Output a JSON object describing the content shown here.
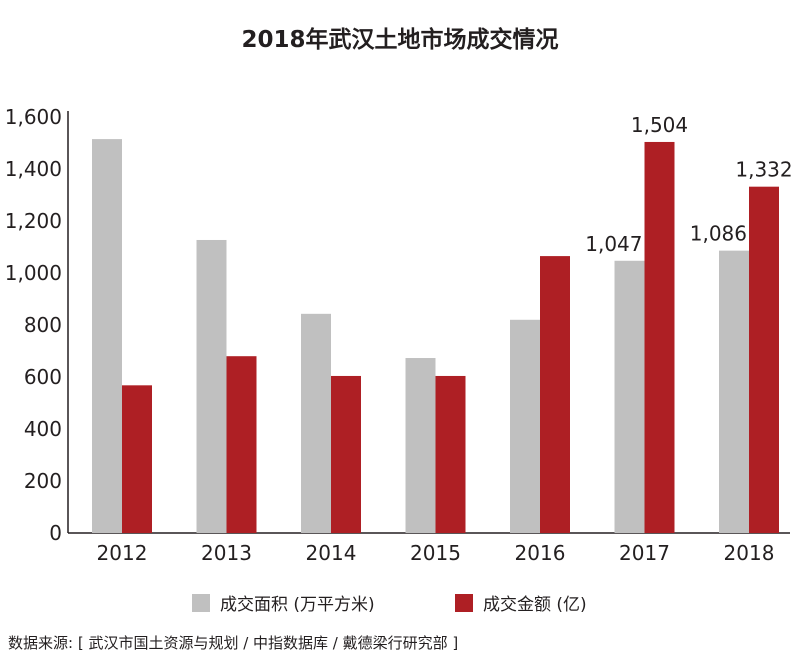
{
  "title": "2018年武汉土地市场成交情况",
  "legend": {
    "area_label": "成交面积 (万平方米)",
    "amount_label": "成交金额 (亿)"
  },
  "source": "数据来源: [ 武汉市国土资源与规划 / 中指数据库 / 戴德梁行研究部 ]",
  "colors": {
    "area": "#c0c0c0",
    "amount": "#ae1f24",
    "axis": "#231f20"
  },
  "chart_data": {
    "type": "bar",
    "title": "2018年武汉土地市场成交情况",
    "categories": [
      "2012",
      "2013",
      "2014",
      "2015",
      "2016",
      "2017",
      "2018"
    ],
    "series": [
      {
        "name": "成交面积 (万平方米)",
        "values": [
          1515,
          1127,
          843,
          673,
          820,
          1047,
          1086
        ]
      },
      {
        "name": "成交金额 (亿)",
        "values": [
          568,
          680,
          604,
          604,
          1065,
          1504,
          1332
        ]
      }
    ],
    "yticks": [
      "0",
      "200",
      "400",
      "600",
      "800",
      "1,000",
      "1,200",
      "1,400",
      "1,600"
    ],
    "ylim": [
      0,
      1600
    ],
    "data_labels": [
      {
        "series": 0,
        "index": 5,
        "text": "1,047"
      },
      {
        "series": 1,
        "index": 5,
        "text": "1,504"
      },
      {
        "series": 0,
        "index": 6,
        "text": "1,086"
      },
      {
        "series": 1,
        "index": 6,
        "text": "1,332"
      }
    ],
    "xlabel": "",
    "ylabel": "",
    "grid": false,
    "legend_position": "bottom"
  }
}
